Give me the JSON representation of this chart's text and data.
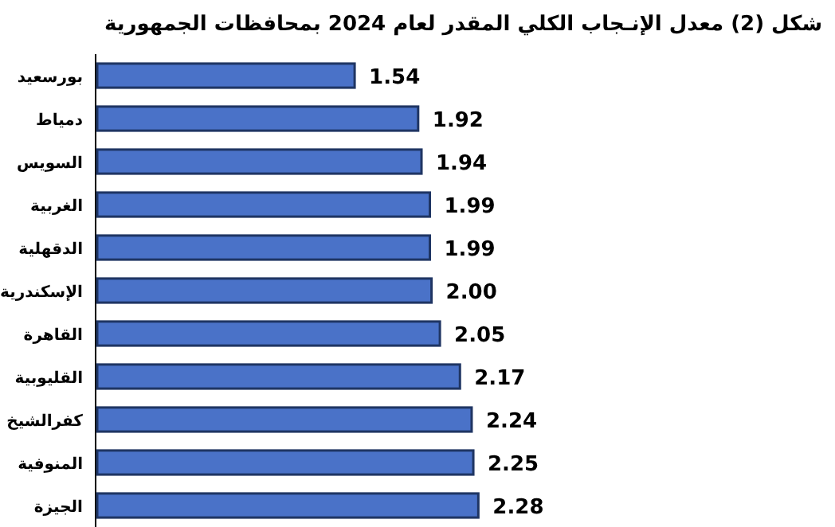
{
  "chart_data": {
    "type": "bar",
    "orientation": "horizontal",
    "title": "شكل (2) معدل الإنـجاب الكلي المقدر لعام 2024 بمحافظات الجمهورية",
    "categories": [
      "بورسعيد",
      "دمياط",
      "السويس",
      "الغربية",
      "الدقهلية",
      "الإسكندرية",
      "القاهرة",
      "القليوبية",
      "كفرالشيخ",
      "المنوفية",
      "الجيزة"
    ],
    "values": [
      1.54,
      1.92,
      1.94,
      1.99,
      1.99,
      2.0,
      2.05,
      2.17,
      2.24,
      2.25,
      2.28
    ],
    "value_labels": [
      "1.54",
      "1.92",
      "1.94",
      "1.99",
      "1.99",
      "2.00",
      "2.05",
      "2.17",
      "2.24",
      "2.25",
      "2.28"
    ],
    "color": "#4a72c8"
  }
}
